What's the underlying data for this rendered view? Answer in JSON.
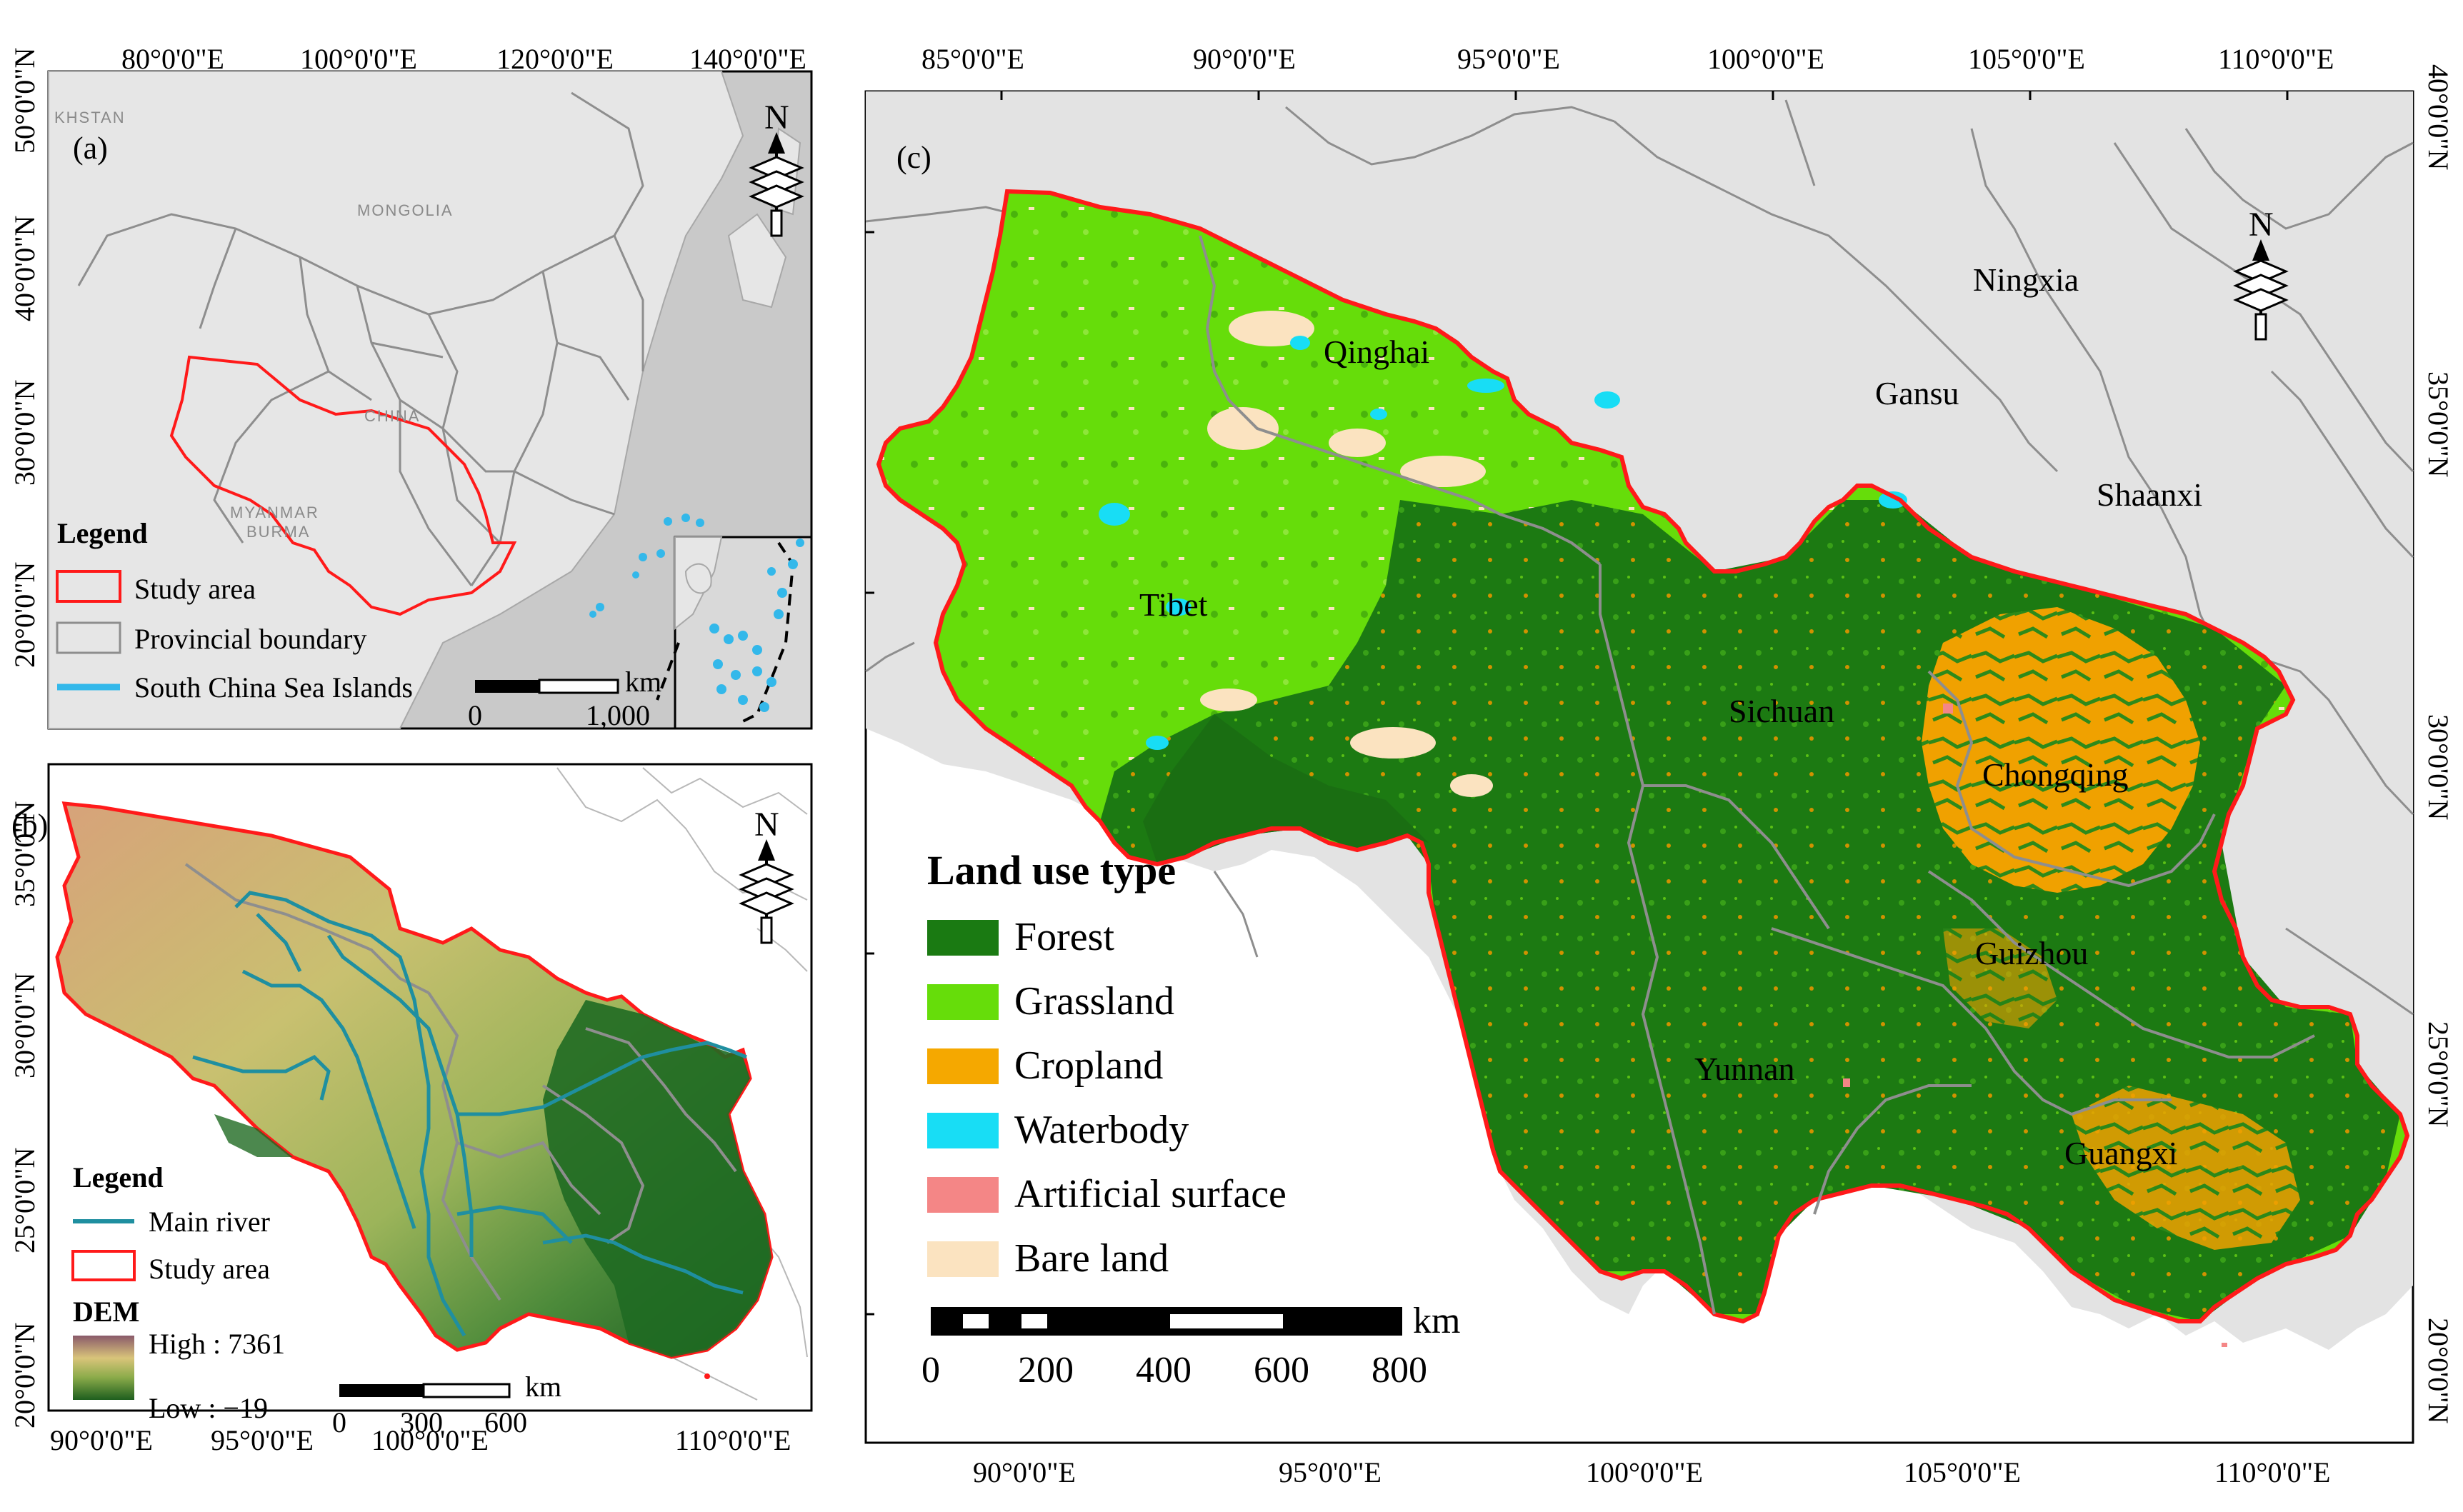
{
  "panel_a": {
    "tag": "(a)",
    "top_lon": [
      "80°0'0\"E",
      "100°0'0\"E",
      "120°0'0\"E",
      "140°0'0\"E"
    ],
    "left_lat": [
      "50°0'0\"N",
      "40°0'0\"N",
      "30°0'0\"N",
      "20°0'0\"N"
    ],
    "basemap_labels": [
      "KHSTAN",
      "MONGOLIA",
      "CHINA",
      "MYANMAR",
      "BURMA"
    ],
    "legend": {
      "title": "Legend",
      "items": [
        "Study area",
        "Provincial boundary",
        "South China Sea Islands"
      ]
    },
    "scale": {
      "unit": "km",
      "start": "0",
      "end": "1,000"
    },
    "north": "N"
  },
  "panel_b": {
    "tag": "(b)",
    "left_lat": [
      "35°0'0\"N",
      "30°0'0\"N",
      "25°0'0\"N",
      "20°0'0\"N"
    ],
    "bottom_lon": [
      "90°0'0\"E",
      "95°0'0\"E",
      "100°0'0\"E",
      "110°0'0\"E"
    ],
    "legend": {
      "title": "Legend",
      "items": [
        "Main river",
        "Study area"
      ],
      "dem_title": "DEM",
      "dem_high": "High : 7361",
      "dem_low": "Low : −19"
    },
    "scale": {
      "unit": "km",
      "ticks": [
        "0",
        "300",
        "600"
      ]
    },
    "north": "N"
  },
  "panel_c": {
    "tag": "(c)",
    "top_lon": [
      "85°0'0\"E",
      "90°0'0\"E",
      "95°0'0\"E",
      "100°0'0\"E",
      "105°0'0\"E",
      "110°0'0\"E"
    ],
    "bottom_lon": [
      "90°0'0\"E",
      "95°0'0\"E",
      "100°0'0\"E",
      "105°0'0\"E",
      "110°0'0\"E"
    ],
    "right_lat": [
      "40°0'0\"N",
      "35°0'0\"N",
      "30°0'0\"N",
      "25°0'0\"N",
      "20°0'0\"N"
    ],
    "provinces": [
      "Qinghai",
      "Ningxia",
      "Gansu",
      "Shaanxi",
      "Tibet",
      "Sichuan",
      "Chongqing",
      "Guizhou",
      "Yunnan",
      "Guangxi"
    ],
    "legend": {
      "title": "Land use type",
      "items": [
        {
          "label": "Forest",
          "color": "#1a7a12"
        },
        {
          "label": "Grassland",
          "color": "#66dd0a"
        },
        {
          "label": "Cropland",
          "color": "#f5a800"
        },
        {
          "label": "Waterbody",
          "color": "#18ddf5"
        },
        {
          "label": "Artificial surface",
          "color": "#f48686"
        },
        {
          "label": "Bare land",
          "color": "#fbe3c0"
        }
      ]
    },
    "scale": {
      "unit": "km",
      "ticks": [
        "0",
        "200",
        "400",
        "600",
        "800"
      ]
    },
    "north": "N"
  },
  "colors": {
    "study_area_boundary": "#ff1a1a",
    "province_boundary": "#8e8e8e",
    "river": "#1f8fa0",
    "basemap_land": "#e6e6e6",
    "basemap_sea": "#c9c9c9",
    "islands": "#33b8ea"
  }
}
